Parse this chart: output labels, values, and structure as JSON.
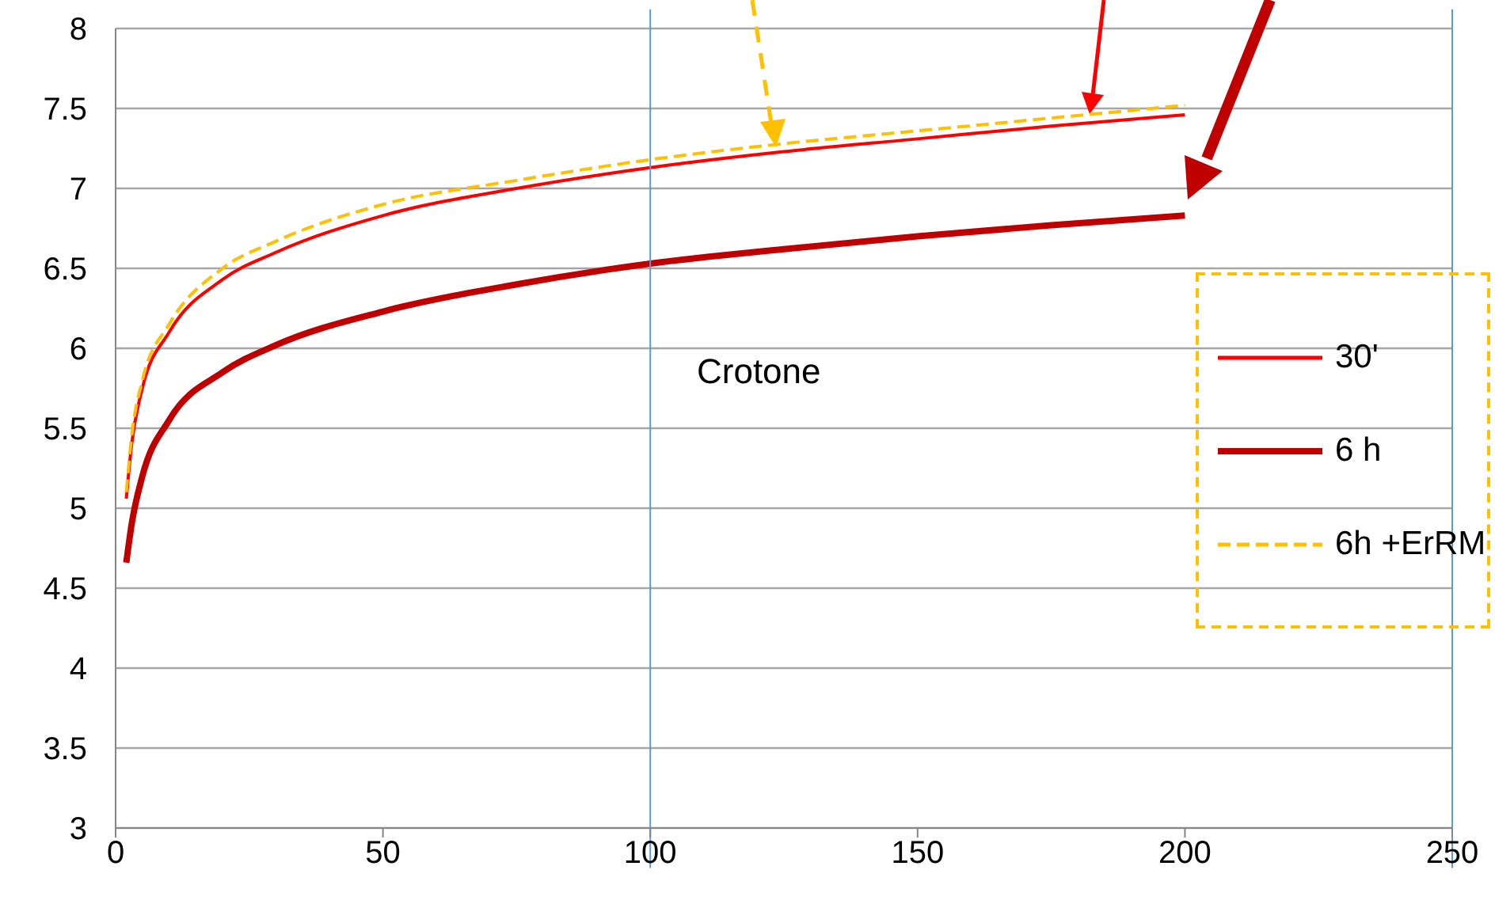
{
  "chart_data": {
    "type": "line",
    "x": [
      2,
      3,
      5,
      10,
      20,
      30,
      50,
      75,
      100,
      125,
      150,
      175,
      200
    ],
    "series": [
      {
        "name": "30'",
        "color": "#ff0000",
        "values": [
          5.06,
          5.4,
          5.75,
          6.1,
          6.43,
          6.6,
          6.83,
          7.0,
          7.13,
          7.23,
          7.31,
          7.39,
          7.46
        ]
      },
      {
        "name": "6 h",
        "color": "#c00000",
        "values": [
          4.66,
          4.9,
          5.2,
          5.55,
          5.85,
          6.02,
          6.23,
          6.4,
          6.53,
          6.62,
          6.7,
          6.77,
          6.83
        ]
      },
      {
        "name": "6h +ErRM",
        "color": "#ffc000",
        "line_style": "dashed",
        "values": [
          5.1,
          5.45,
          5.8,
          6.15,
          6.5,
          6.67,
          6.9,
          7.05,
          7.18,
          7.28,
          7.36,
          7.44,
          7.52
        ]
      }
    ],
    "xlim": [
      0,
      250
    ],
    "xticks": [
      0,
      50,
      100,
      150,
      200,
      250
    ],
    "ylim": [
      3,
      8
    ],
    "yticks": [
      3,
      3.5,
      4,
      4.5,
      5,
      5.5,
      6,
      6.5,
      7,
      7.5,
      8
    ],
    "grid": "y",
    "legend": "right",
    "marker": "none",
    "ref_lines": [
      {
        "axis": "x",
        "value": 100,
        "color": "#5b9bd5"
      },
      {
        "axis": "x",
        "value": 250,
        "color": "#5b9bd5"
      }
    ],
    "annotations": [
      "Crotone"
    ]
  }
}
